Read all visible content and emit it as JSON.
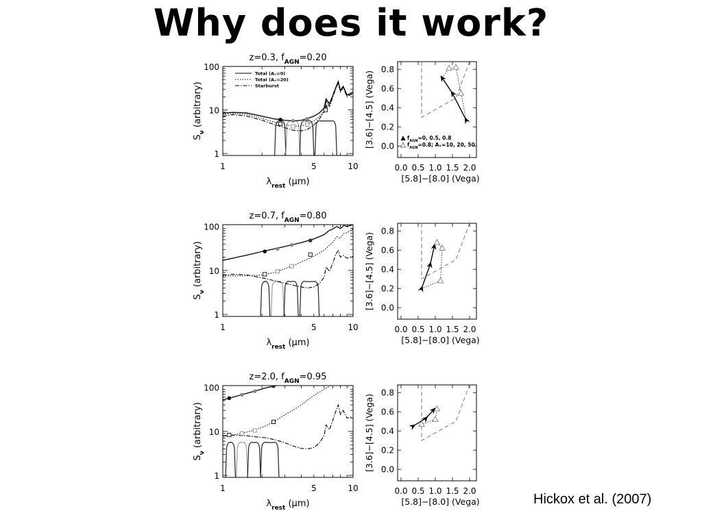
{
  "slide": {
    "title": "Why does it work?",
    "credit": "Hickox et al. (2007)"
  },
  "sed_legend": [
    "Total (Aᵥ=0)",
    "Total (Aᵥ=20)",
    "Starburst"
  ],
  "chart_data": [
    {
      "type": "line",
      "panel": "SED",
      "title_prefix": "z=0.3,",
      "title_f": "f",
      "title_sub": "AGN",
      "title_value": "=0.20",
      "xlabel": "λ",
      "xlabel_sub": "rest",
      "xlabel_unit": "(μm)",
      "ylabel": "S",
      "ylabel_sub": "ν",
      "ylabel_rest": "(arbitrary)",
      "xscale": "log",
      "yscale": "log",
      "xlim": [
        1,
        10
      ],
      "ylim": [
        0.9,
        100
      ],
      "xticks": [
        {
          "v": 1,
          "label": "1"
        },
        {
          "v": 5,
          "label": "5"
        },
        {
          "v": 10,
          "label": "10"
        }
      ],
      "yticks": [
        {
          "v": 1,
          "label": "1"
        },
        {
          "v": 10,
          "label": "10"
        },
        {
          "v": 100,
          "label": "100"
        }
      ],
      "series": [
        {
          "style": "solid",
          "x": [
            1,
            1.2,
            1.5,
            2.0,
            2.5,
            3.0,
            3.5,
            4.0,
            4.5,
            5.0,
            5.5,
            6.0,
            6.2,
            6.6,
            7.0,
            7.4,
            7.7,
            8.0,
            8.4,
            9.0,
            10
          ],
          "y": [
            8.5,
            8.8,
            8.6,
            7.2,
            6.2,
            5.8,
            5.6,
            5.8,
            6.4,
            7.2,
            8.5,
            11,
            18,
            14,
            22,
            34,
            45,
            28,
            35,
            22,
            26
          ]
        },
        {
          "style": "dotted",
          "x": [
            1,
            1.2,
            1.5,
            2.0,
            2.5,
            3.0,
            3.5,
            4.0,
            4.5,
            5.0,
            5.5,
            6.0,
            6.2,
            6.6,
            7.0,
            7.4,
            7.7,
            8.0,
            8.4,
            9.0,
            10
          ],
          "y": [
            8.0,
            8.3,
            8.0,
            6.4,
            5.2,
            4.6,
            4.2,
            4.3,
            4.8,
            5.6,
            7.0,
            9.5,
            17,
            13,
            21,
            33,
            43,
            27,
            34,
            21,
            25
          ]
        },
        {
          "style": "dashdot",
          "x": [
            1,
            1.2,
            1.5,
            2.0,
            2.5,
            3.0,
            3.5,
            4.0,
            4.5,
            5.0,
            5.5,
            6.0,
            6.2,
            6.6,
            7.0,
            7.4,
            7.7,
            8.0,
            8.4,
            9.0,
            10
          ],
          "y": [
            7.2,
            7.8,
            7.3,
            5.8,
            4.6,
            3.9,
            3.4,
            3.3,
            3.6,
            4.5,
            6.2,
            9.0,
            16,
            12,
            20,
            32,
            42,
            26,
            33,
            20,
            24
          ]
        }
      ],
      "markers_filled": [
        {
          "x": 2.77,
          "y": 6.0
        },
        {
          "x": 3.46,
          "y": 5.6
        },
        {
          "x": 4.45,
          "y": 6.2
        },
        {
          "x": 6.15,
          "y": 12
        }
      ],
      "markers_open": [
        {
          "x": 2.77,
          "y": 4.8
        },
        {
          "x": 3.46,
          "y": 4.2
        },
        {
          "x": 4.45,
          "y": 4.6
        },
        {
          "x": 6.15,
          "y": 10
        }
      ],
      "filters": [
        {
          "lo": 2.5,
          "hi": 3.05,
          "gray": false
        },
        {
          "lo": 3.05,
          "hi": 3.9,
          "gray": true
        },
        {
          "lo": 3.9,
          "hi": 5.0,
          "gray": false
        },
        {
          "lo": 5.1,
          "hi": 7.5,
          "gray": false
        }
      ],
      "filter_peak": 6
    },
    {
      "type": "line",
      "panel": "color-color",
      "xlabel": "[5.8]−[8.0] (Vega)",
      "ylabel": "[3.6]−[4.5] (Vega)",
      "xlim": [
        -0.1,
        2.2
      ],
      "ylim": [
        -0.12,
        0.88
      ],
      "xticks": [
        {
          "v": 0,
          "label": "0.0"
        },
        {
          "v": 0.5,
          "label": "0.5"
        },
        {
          "v": 1.0,
          "label": "1.0"
        },
        {
          "v": 1.5,
          "label": "1.5"
        },
        {
          "v": 2.0,
          "label": "2.0"
        }
      ],
      "yticks": [
        {
          "v": 0,
          "label": "0.0"
        },
        {
          "v": 0.2,
          "label": "0.2"
        },
        {
          "v": 0.4,
          "label": "0.4"
        },
        {
          "v": 0.6,
          "label": "0.6"
        },
        {
          "v": 0.8,
          "label": "0.8"
        }
      ],
      "wedge": [
        [
          0.6,
          0.88
        ],
        [
          0.6,
          0.3
        ],
        [
          1.6,
          0.5
        ],
        [
          2.0,
          0.88
        ]
      ],
      "track_solid": [
        [
          1.9,
          0.27
        ],
        [
          1.5,
          0.55
        ],
        [
          1.2,
          0.71
        ]
      ],
      "track_solid_arrows": [
        [
          1.9,
          0.27
        ],
        [
          1.5,
          0.55
        ],
        [
          1.2,
          0.71
        ]
      ],
      "track_dotted": [
        [
          1.2,
          0.71
        ],
        [
          1.4,
          0.81
        ],
        [
          1.6,
          0.82
        ],
        [
          1.75,
          0.55
        ],
        [
          1.9,
          0.27
        ]
      ],
      "open_triangles": [
        [
          1.4,
          0.81
        ],
        [
          1.6,
          0.82
        ],
        [
          1.75,
          0.55
        ]
      ],
      "legend": [
        {
          "symbol": "filled",
          "f": "f",
          "sub": "AGN",
          "text": "=0, 0.5, 0.8"
        },
        {
          "symbol": "open",
          "f": "f",
          "sub": "AGN",
          "text": "=0.8; Aᵥ=10, 20, 50"
        }
      ]
    },
    {
      "type": "line",
      "panel": "SED",
      "title_prefix": "z=0.7,",
      "title_f": "f",
      "title_sub": "AGN",
      "title_value": "=0.80",
      "xlabel": "λ",
      "xlabel_sub": "rest",
      "xlabel_unit": "(μm)",
      "ylabel": "S",
      "ylabel_sub": "ν",
      "ylabel_rest": "(arbitrary)",
      "xscale": "log",
      "yscale": "log",
      "xlim": [
        1,
        10
      ],
      "ylim": [
        0.9,
        110
      ],
      "xticks": [
        {
          "v": 1,
          "label": "1"
        },
        {
          "v": 5,
          "label": "5"
        },
        {
          "v": 10,
          "label": "10"
        }
      ],
      "yticks": [
        {
          "v": 1,
          "label": "1"
        },
        {
          "v": 10,
          "label": "10"
        },
        {
          "v": 100,
          "label": "100"
        }
      ],
      "series": [
        {
          "style": "solid",
          "x": [
            1,
            1.5,
            2.0,
            2.5,
            3.0,
            3.5,
            4.0,
            5.0,
            6.0,
            6.5,
            7.0,
            7.5,
            8.0,
            8.5,
            9.0,
            10
          ],
          "y": [
            17,
            22,
            27,
            31,
            35,
            39,
            43,
            52,
            65,
            80,
            88,
            100,
            90,
            105,
            100,
            110
          ]
        },
        {
          "style": "dotted",
          "x": [
            1,
            1.5,
            2.0,
            2.5,
            3.0,
            3.5,
            4.0,
            5.0,
            6.0,
            6.5,
            7.0,
            7.5,
            8.0,
            8.5,
            9.0,
            10
          ],
          "y": [
            7.5,
            7.6,
            7.8,
            9.0,
            11,
            13,
            15.5,
            21,
            29,
            36,
            44,
            58,
            54,
            70,
            72,
            90
          ]
        },
        {
          "style": "dashdot",
          "x": [
            1,
            1.2,
            1.5,
            2.0,
            2.5,
            3.0,
            3.5,
            4.0,
            4.5,
            5.0,
            5.5,
            6.0,
            6.2,
            6.6,
            7.0,
            7.4,
            7.7,
            8.0,
            8.4,
            9.0,
            10
          ],
          "y": [
            7.8,
            8.2,
            8.0,
            6.8,
            5.8,
            5.1,
            4.6,
            4.2,
            4.0,
            4.2,
            5.0,
            7.0,
            12,
            9.5,
            15,
            24,
            28,
            20,
            22,
            19,
            21
          ]
        }
      ],
      "markers_filled": [
        {
          "x": 2.1,
          "y": 27
        },
        {
          "x": 2.63,
          "y": 31
        },
        {
          "x": 3.38,
          "y": 38
        },
        {
          "x": 4.7,
          "y": 48
        }
      ],
      "markers_open": [
        {
          "x": 2.1,
          "y": 8.2
        },
        {
          "x": 2.63,
          "y": 9.5
        },
        {
          "x": 3.38,
          "y": 12.5
        },
        {
          "x": 4.7,
          "y": 23
        }
      ],
      "filters": [
        {
          "lo": 1.95,
          "hi": 2.3,
          "gray": false
        },
        {
          "lo": 2.35,
          "hi": 2.95,
          "gray": true
        },
        {
          "lo": 2.95,
          "hi": 3.8,
          "gray": false
        },
        {
          "lo": 3.9,
          "hi": 5.5,
          "gray": false
        }
      ],
      "filter_peak": 6
    },
    {
      "type": "line",
      "panel": "color-color",
      "xlabel": "[5.8]−[8.0] (Vega)",
      "ylabel": "[3.6]−[4.5] (Vega)",
      "xlim": [
        -0.1,
        2.2
      ],
      "ylim": [
        -0.12,
        0.88
      ],
      "xticks": [
        {
          "v": 0,
          "label": "0.0"
        },
        {
          "v": 0.5,
          "label": "0.5"
        },
        {
          "v": 1.0,
          "label": "1.0"
        },
        {
          "v": 1.5,
          "label": "1.5"
        },
        {
          "v": 2.0,
          "label": "2.0"
        }
      ],
      "yticks": [
        {
          "v": 0,
          "label": "0.0"
        },
        {
          "v": 0.2,
          "label": "0.2"
        },
        {
          "v": 0.4,
          "label": "0.4"
        },
        {
          "v": 0.6,
          "label": "0.6"
        },
        {
          "v": 0.8,
          "label": "0.8"
        }
      ],
      "wedge": [
        [
          0.6,
          0.88
        ],
        [
          0.6,
          0.3
        ],
        [
          1.6,
          0.5
        ],
        [
          2.0,
          0.88
        ]
      ],
      "track_solid": [
        [
          0.6,
          0.2
        ],
        [
          0.85,
          0.45
        ],
        [
          0.97,
          0.64
        ]
      ],
      "track_solid_arrows": [
        [
          0.6,
          0.2
        ],
        [
          0.85,
          0.45
        ],
        [
          0.97,
          0.64
        ]
      ],
      "track_dotted": [
        [
          0.97,
          0.64
        ],
        [
          1.05,
          0.68
        ],
        [
          1.2,
          0.62
        ],
        [
          1.15,
          0.28
        ],
        [
          0.6,
          0.2
        ]
      ],
      "open_triangles": [
        [
          1.05,
          0.68
        ],
        [
          1.2,
          0.62
        ],
        [
          1.15,
          0.28
        ]
      ],
      "legend": []
    },
    {
      "type": "line",
      "panel": "SED",
      "title_prefix": "z=2.0,",
      "title_f": "f",
      "title_sub": "AGN",
      "title_value": "=0.95",
      "xlabel": "λ",
      "xlabel_sub": "rest",
      "xlabel_unit": "(μm)",
      "ylabel": "S",
      "ylabel_sub": "ν",
      "ylabel_rest": "(arbitrary)",
      "xscale": "log",
      "yscale": "log",
      "xlim": [
        1,
        10
      ],
      "ylim": [
        0.9,
        110
      ],
      "xticks": [
        {
          "v": 1,
          "label": "1"
        },
        {
          "v": 5,
          "label": "5"
        },
        {
          "v": 10,
          "label": "10"
        }
      ],
      "yticks": [
        {
          "v": 1,
          "label": "1"
        },
        {
          "v": 10,
          "label": "10"
        },
        {
          "v": 100,
          "label": "100"
        }
      ],
      "series": [
        {
          "style": "solid",
          "x": [
            1,
            1.2,
            1.5,
            1.8,
            2.1,
            2.5,
            2.9
          ],
          "y": [
            52,
            60,
            72,
            84,
            96,
            108,
            118
          ]
        },
        {
          "style": "dotted",
          "x": [
            1,
            1.2,
            1.5,
            1.8,
            2.1,
            2.5,
            3.0,
            3.5,
            4.0,
            4.5,
            5.0,
            6.0,
            7.0
          ],
          "y": [
            8.0,
            8.3,
            9.5,
            11,
            13,
            17,
            24,
            31,
            40,
            52,
            66,
            90,
            120
          ]
        },
        {
          "style": "dashdot",
          "x": [
            1,
            1.2,
            1.5,
            1.8,
            2.1,
            2.5,
            3.0,
            3.5,
            4.0,
            4.5,
            5.0,
            5.5,
            6.0,
            6.2,
            6.6,
            7.0,
            7.4,
            7.7,
            8.0,
            8.4,
            9.0,
            10
          ],
          "y": [
            7.8,
            8.2,
            8.0,
            7.5,
            7.2,
            6.5,
            5.5,
            4.6,
            4.1,
            4.0,
            4.3,
            5.4,
            8.0,
            14,
            11,
            18,
            30,
            40,
            24,
            30,
            20,
            22
          ]
        }
      ],
      "markers_filled": [
        {
          "x": 1.12,
          "y": 57
        },
        {
          "x": 1.4,
          "y": 68
        },
        {
          "x": 1.76,
          "y": 82
        },
        {
          "x": 2.45,
          "y": 107
        }
      ],
      "markers_open": [
        {
          "x": 1.12,
          "y": 8.3
        },
        {
          "x": 1.4,
          "y": 9.0
        },
        {
          "x": 1.76,
          "y": 10.5
        },
        {
          "x": 2.45,
          "y": 16.5
        }
      ],
      "filters": [
        {
          "lo": 1.05,
          "hi": 1.25,
          "gray": false
        },
        {
          "lo": 1.27,
          "hi": 1.55,
          "gray": true
        },
        {
          "lo": 1.55,
          "hi": 1.95,
          "gray": false
        },
        {
          "lo": 1.95,
          "hi": 2.7,
          "gray": false
        }
      ],
      "filter_peak": 6
    },
    {
      "type": "line",
      "panel": "color-color",
      "xlabel": "[5.8]−[8.0] (Vega)",
      "ylabel": "[3.6]−[4.5] (Vega)",
      "xlim": [
        -0.1,
        2.2
      ],
      "ylim": [
        -0.12,
        0.88
      ],
      "xticks": [
        {
          "v": 0,
          "label": "0.0"
        },
        {
          "v": 0.5,
          "label": "0.5"
        },
        {
          "v": 1.0,
          "label": "1.0"
        },
        {
          "v": 1.5,
          "label": "1.5"
        },
        {
          "v": 2.0,
          "label": "2.0"
        }
      ],
      "yticks": [
        {
          "v": 0,
          "label": "0.0"
        },
        {
          "v": 0.2,
          "label": "0.2"
        },
        {
          "v": 0.4,
          "label": "0.4"
        },
        {
          "v": 0.6,
          "label": "0.6"
        },
        {
          "v": 0.8,
          "label": "0.8"
        }
      ],
      "wedge": [
        [
          0.6,
          0.88
        ],
        [
          0.6,
          0.3
        ],
        [
          1.6,
          0.5
        ],
        [
          2.0,
          0.88
        ]
      ],
      "track_solid": [
        [
          0.35,
          0.45
        ],
        [
          0.72,
          0.53
        ],
        [
          0.95,
          0.62
        ]
      ],
      "track_solid_arrows": [
        [
          0.35,
          0.45
        ],
        [
          0.72,
          0.53
        ],
        [
          0.95,
          0.62
        ]
      ],
      "track_dotted": [
        [
          0.95,
          0.62
        ],
        [
          1.05,
          0.63
        ],
        [
          1.0,
          0.52
        ],
        [
          0.6,
          0.47
        ]
      ],
      "open_triangles": [
        [
          1.05,
          0.63
        ],
        [
          1.0,
          0.52
        ],
        [
          0.6,
          0.47
        ]
      ],
      "legend": []
    }
  ]
}
